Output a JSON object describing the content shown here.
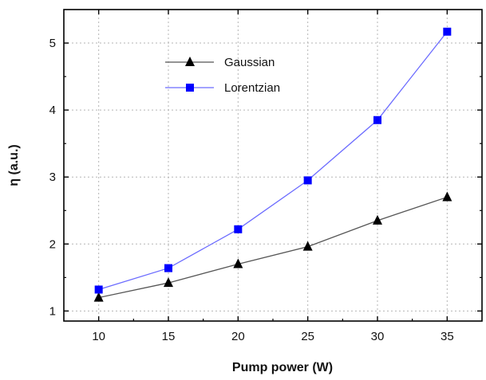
{
  "chart_data": {
    "type": "line",
    "xlabel": "Pump power (W)",
    "ylabel": "η (a.u.)",
    "x": [
      10,
      15,
      20,
      25,
      30,
      35
    ],
    "xticks": [
      10,
      15,
      20,
      25,
      30,
      35
    ],
    "yticks": [
      1,
      2,
      3,
      4,
      5
    ],
    "xlim": [
      7.5,
      37.5
    ],
    "ylim": [
      0.85,
      5.5
    ],
    "grid": true,
    "legend_position": "top-left",
    "series": [
      {
        "name": "Gaussian",
        "marker": "triangle",
        "color": "#000000",
        "line_color": "#555555",
        "values": [
          1.2,
          1.42,
          1.7,
          1.96,
          2.35,
          2.7
        ]
      },
      {
        "name": "Lorentzian",
        "marker": "square",
        "color": "#0000ff",
        "line_color": "#6b6bff",
        "values": [
          1.32,
          1.64,
          2.22,
          2.95,
          3.85,
          5.17
        ]
      }
    ]
  }
}
